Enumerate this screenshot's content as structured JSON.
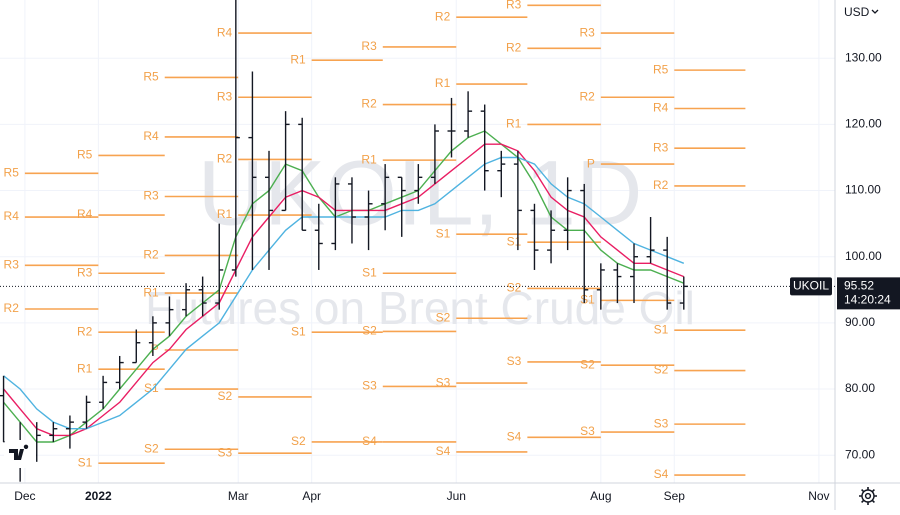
{
  "chart_data": {
    "type": "ohlc",
    "watermark_title": "UKOIL, 1D",
    "watermark_subtitle": "Futures on Brent Crude Oil",
    "currency": "USD",
    "symbol": "UKOIL",
    "last_price": 95.52,
    "countdown": "14:20:24",
    "bar_color": "#131722",
    "pivot_color": "#f7a350",
    "grid": true,
    "xlim": [
      -10.5,
      341.8
    ],
    "xticks": [
      {
        "value": 0,
        "label": "Dec"
      },
      {
        "value": 31,
        "label": "2022"
      },
      {
        "value": 90,
        "label": "Mar"
      },
      {
        "value": 121,
        "label": "Apr"
      },
      {
        "value": 182,
        "label": "Jun"
      },
      {
        "value": 243,
        "label": "Aug"
      },
      {
        "value": 274,
        "label": "Sep"
      },
      {
        "value": 335,
        "label": "Nov"
      }
    ],
    "ylim": [
      65.8,
      138.8
    ],
    "yticks": [
      {
        "value": 70,
        "label": "70.00"
      },
      {
        "value": 80,
        "label": "80.00"
      },
      {
        "value": 90,
        "label": "90.00"
      },
      {
        "value": 100,
        "label": "100.00"
      },
      {
        "value": 110,
        "label": "110.00"
      },
      {
        "value": 120,
        "label": "120.00"
      },
      {
        "value": 130,
        "label": "130.00"
      }
    ],
    "bars": {
      "x": [
        -9,
        -2,
        5,
        12,
        19,
        26,
        33,
        40,
        47,
        54,
        61,
        68,
        75,
        82,
        89,
        96,
        103,
        110,
        117,
        124,
        131,
        138,
        145,
        152,
        159,
        166,
        173,
        180,
        187,
        194,
        201,
        208,
        215,
        222,
        229,
        236,
        243,
        250,
        257,
        264,
        271,
        278
      ],
      "open": [
        79,
        72,
        70,
        73,
        74,
        75,
        78,
        81,
        84,
        87,
        90,
        92,
        95,
        93,
        98,
        118,
        112,
        107,
        120,
        104,
        102,
        111,
        106,
        108,
        112,
        110,
        112,
        119,
        119,
        122,
        113,
        114,
        107,
        101,
        104,
        110,
        95,
        98,
        97,
        100,
        101,
        93
      ],
      "high": [
        82,
        75,
        75,
        75,
        76,
        79,
        82,
        85,
        89,
        91,
        94,
        96,
        97,
        105,
        139,
        128,
        116,
        122,
        121,
        108,
        112,
        112,
        110,
        114,
        112,
        114,
        120,
        124,
        125,
        123,
        116,
        116,
        108,
        107,
        112,
        111,
        99,
        99,
        102,
        106,
        103,
        97
      ],
      "low": [
        72,
        66,
        69,
        72,
        71,
        74,
        77,
        80,
        84,
        85,
        88,
        91,
        91,
        92,
        97,
        98,
        98,
        107,
        104,
        98,
        101,
        102,
        101,
        104,
        103,
        108,
        111,
        115,
        118,
        110,
        109,
        101,
        98,
        99,
        101,
        93,
        92,
        93,
        93,
        99,
        92,
        92
      ],
      "close": [
        72,
        70,
        73,
        74,
        75,
        78,
        81,
        84,
        87,
        90,
        92,
        95,
        93,
        98,
        118,
        112,
        107,
        120,
        104,
        102,
        111,
        106,
        108,
        112,
        110,
        112,
        119,
        119,
        122,
        113,
        114,
        107,
        101,
        104,
        110,
        95,
        98,
        97,
        100,
        101,
        93,
        95.52
      ]
    },
    "moving_averages": [
      {
        "color": "#4caf50",
        "values": [
          78,
          75,
          72,
          72,
          73,
          75,
          77,
          80,
          83,
          86,
          88,
          91,
          93,
          95,
          103,
          108,
          110,
          114,
          113,
          109,
          106,
          107,
          107,
          108,
          109,
          110,
          113,
          116,
          118,
          119,
          117,
          115,
          111,
          106,
          104,
          104,
          101,
          99,
          98,
          98,
          97,
          96
        ]
      },
      {
        "color": "#e91e63",
        "values": [
          80,
          77,
          74,
          73,
          73,
          74,
          76,
          78,
          81,
          84,
          86,
          89,
          91,
          93,
          98,
          103,
          106,
          109,
          110,
          109,
          107,
          107,
          107,
          107,
          108,
          109,
          111,
          113,
          115,
          117,
          117,
          116,
          113,
          109,
          107,
          106,
          103,
          101,
          99,
          99,
          98,
          97
        ]
      },
      {
        "color": "#4fb3e0",
        "values": [
          82,
          80,
          77,
          75,
          74,
          74,
          75,
          76,
          78,
          80,
          83,
          86,
          88,
          90,
          94,
          98,
          101,
          104,
          106,
          106,
          106,
          106,
          106,
          106,
          107,
          107,
          108,
          110,
          112,
          114,
          115,
          115,
          114,
          111,
          109,
          108,
          106,
          104,
          102,
          101,
          100,
          99
        ]
      }
    ],
    "pivot_periods": [
      {
        "x": [
          0,
          31
        ],
        "levels": [
          {
            "label": "R5",
            "value": 112.6
          },
          {
            "label": "R4",
            "value": 106.0
          },
          {
            "label": "R3",
            "value": 98.7
          },
          {
            "label": "R2",
            "value": 92.1
          }
        ]
      },
      {
        "x": [
          31,
          59
        ],
        "levels": [
          {
            "label": "R5",
            "value": 115.3
          },
          {
            "label": "R4",
            "value": 106.3
          },
          {
            "label": "R3",
            "value": 97.5
          },
          {
            "label": "R2",
            "value": 88.6
          },
          {
            "label": "R1",
            "value": 83.0
          },
          {
            "label": "S1",
            "value": 68.8
          }
        ]
      },
      {
        "x": [
          59,
          90
        ],
        "levels": [
          {
            "label": "R5",
            "value": 127.1
          },
          {
            "label": "R4",
            "value": 118.1
          },
          {
            "label": "R3",
            "value": 109.1
          },
          {
            "label": "R2",
            "value": 100.2
          },
          {
            "label": "R1",
            "value": 94.5
          },
          {
            "label": "P",
            "value": 85.9
          },
          {
            "label": "S1",
            "value": 80.0
          },
          {
            "label": "S2",
            "value": 70.9
          }
        ]
      },
      {
        "x": [
          90,
          121
        ],
        "levels": [
          {
            "label": "R4",
            "value": 133.8
          },
          {
            "label": "R3",
            "value": 124.1
          },
          {
            "label": "R2",
            "value": 114.7
          },
          {
            "label": "R1",
            "value": 106.3
          },
          {
            "label": "S2",
            "value": 78.8
          },
          {
            "label": "S3",
            "value": 70.3
          }
        ]
      },
      {
        "x": [
          121,
          151
        ],
        "levels": [
          {
            "label": "R1",
            "value": 129.7
          },
          {
            "label": "S1",
            "value": 88.6
          },
          {
            "label": "S2",
            "value": 72.0
          }
        ]
      },
      {
        "x": [
          151,
          182
        ],
        "levels": [
          {
            "label": "R3",
            "value": 131.7
          },
          {
            "label": "R2",
            "value": 123.0
          },
          {
            "label": "R1",
            "value": 114.6
          },
          {
            "label": "S1",
            "value": 97.5
          },
          {
            "label": "S2",
            "value": 88.7
          },
          {
            "label": "S3",
            "value": 80.4
          },
          {
            "label": "S4",
            "value": 72.0
          }
        ]
      },
      {
        "x": [
          182,
          212
        ],
        "levels": [
          {
            "label": "R2",
            "value": 136.2
          },
          {
            "label": "R1",
            "value": 126.1
          },
          {
            "label": "S1",
            "value": 103.4
          },
          {
            "label": "S2",
            "value": 90.7
          },
          {
            "label": "S3",
            "value": 80.9
          },
          {
            "label": "S4",
            "value": 70.5
          }
        ]
      },
      {
        "x": [
          212,
          243
        ],
        "levels": [
          {
            "label": "R3",
            "value": 138.0
          },
          {
            "label": "R2",
            "value": 131.5
          },
          {
            "label": "R1",
            "value": 120.0
          },
          {
            "label": "S1",
            "value": 102.2
          },
          {
            "label": "S2",
            "value": 95.2
          },
          {
            "label": "S3",
            "value": 84.1
          },
          {
            "label": "S4",
            "value": 72.7
          }
        ]
      },
      {
        "x": [
          243,
          274
        ],
        "levels": [
          {
            "label": "R3",
            "value": 133.8
          },
          {
            "label": "R2",
            "value": 124.1
          },
          {
            "label": "P",
            "value": 114.0
          },
          {
            "label": "S1",
            "value": 93.4
          },
          {
            "label": "S2",
            "value": 83.6
          },
          {
            "label": "S3",
            "value": 73.5
          }
        ]
      },
      {
        "x": [
          274,
          304
        ],
        "levels": [
          {
            "label": "R5",
            "value": 128.2
          },
          {
            "label": "R4",
            "value": 122.4
          },
          {
            "label": "R3",
            "value": 116.4
          },
          {
            "label": "R2",
            "value": 110.7
          },
          {
            "label": "S1",
            "value": 88.9
          },
          {
            "label": "S2",
            "value": 82.8
          },
          {
            "label": "S3",
            "value": 74.7
          },
          {
            "label": "S4",
            "value": 67.0
          }
        ]
      }
    ]
  }
}
